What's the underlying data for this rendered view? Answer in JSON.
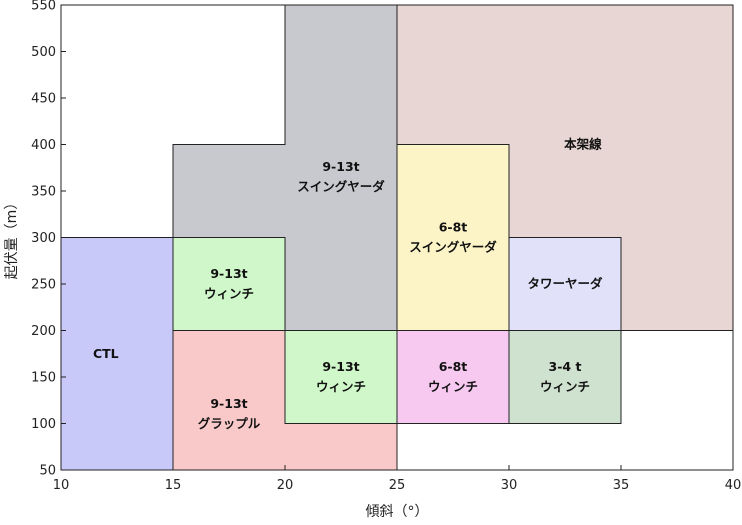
{
  "chart_data": {
    "type": "region",
    "xlabel": "傾斜（°）",
    "ylabel": "起伏量（m）",
    "xlim": [
      10,
      40
    ],
    "ylim": [
      50,
      550
    ],
    "xticks": [
      10,
      15,
      20,
      25,
      30,
      35,
      40
    ],
    "yticks": [
      50,
      100,
      150,
      200,
      250,
      300,
      350,
      400,
      450,
      500,
      550
    ],
    "grid": false,
    "regions": [
      {
        "name": "本架線",
        "labels": [
          "本架線"
        ],
        "color": "#e8d6d4",
        "label_at": [
          33.3,
          400
        ],
        "polygon": [
          [
            25,
            550
          ],
          [
            40,
            550
          ],
          [
            40,
            200
          ],
          [
            35,
            200
          ],
          [
            35,
            300
          ],
          [
            30,
            300
          ],
          [
            30,
            400
          ],
          [
            25,
            400
          ]
        ]
      },
      {
        "name": "9-13t スイングヤーダ",
        "labels": [
          "9-13t",
          "スイングヤーダ"
        ],
        "color": "#c8c8cf",
        "label_at": [
          22.5,
          365
        ],
        "polygon": [
          [
            20,
            550
          ],
          [
            25,
            550
          ],
          [
            25,
            200
          ],
          [
            20,
            200
          ],
          [
            20,
            300
          ],
          [
            15,
            300
          ],
          [
            15,
            400
          ],
          [
            20,
            400
          ]
        ]
      },
      {
        "name": "CTL",
        "labels": [
          "CTL"
        ],
        "color": "#c9c9f9",
        "label_at": [
          12,
          175
        ],
        "polygon": [
          [
            10,
            50
          ],
          [
            15,
            50
          ],
          [
            15,
            300
          ],
          [
            10,
            300
          ]
        ]
      },
      {
        "name": "9-13t ウィンチ (15-20°)",
        "labels": [
          "9-13t",
          "ウィンチ"
        ],
        "color": "#cff7c9",
        "label_at": [
          17.5,
          250
        ],
        "polygon": [
          [
            15,
            200
          ],
          [
            20,
            200
          ],
          [
            20,
            300
          ],
          [
            15,
            300
          ]
        ]
      },
      {
        "name": "9-13t グラップル",
        "labels": [
          "9-13t",
          "グラップル"
        ],
        "color": "#f9c9c9",
        "label_at": [
          17.5,
          110
        ],
        "polygon": [
          [
            15,
            50
          ],
          [
            25,
            50
          ],
          [
            25,
            100
          ],
          [
            20,
            100
          ],
          [
            20,
            200
          ],
          [
            15,
            200
          ]
        ]
      },
      {
        "name": "9-13t ウィンチ (20-25°)",
        "labels": [
          "9-13t",
          "ウィンチ"
        ],
        "color": "#cff7c9",
        "label_at": [
          22.5,
          150
        ],
        "polygon": [
          [
            20,
            100
          ],
          [
            25,
            100
          ],
          [
            25,
            200
          ],
          [
            20,
            200
          ]
        ]
      },
      {
        "name": "6-8t スイングヤーダ",
        "labels": [
          "6-8t",
          "スイングヤーダ"
        ],
        "color": "#fcf3c6",
        "label_at": [
          27.5,
          300
        ],
        "polygon": [
          [
            25,
            200
          ],
          [
            30,
            200
          ],
          [
            30,
            400
          ],
          [
            25,
            400
          ]
        ]
      },
      {
        "name": "6-8t ウィンチ",
        "labels": [
          "6-8t",
          "ウィンチ"
        ],
        "color": "#f7c9f1",
        "label_at": [
          27.5,
          150
        ],
        "polygon": [
          [
            25,
            100
          ],
          [
            30,
            100
          ],
          [
            30,
            200
          ],
          [
            25,
            200
          ]
        ]
      },
      {
        "name": "タワーヤーダ",
        "labels": [
          "タワーヤーダ"
        ],
        "color": "#e1e1f9",
        "label_at": [
          32.5,
          250
        ],
        "polygon": [
          [
            30,
            200
          ],
          [
            35,
            200
          ],
          [
            35,
            300
          ],
          [
            30,
            300
          ]
        ]
      },
      {
        "name": "3-4 t ウィンチ",
        "labels": [
          "3-4 t",
          "ウィンチ"
        ],
        "color": "#cfe1cf",
        "label_at": [
          32.5,
          150
        ],
        "polygon": [
          [
            30,
            100
          ],
          [
            35,
            100
          ],
          [
            35,
            200
          ],
          [
            30,
            200
          ]
        ]
      }
    ]
  }
}
